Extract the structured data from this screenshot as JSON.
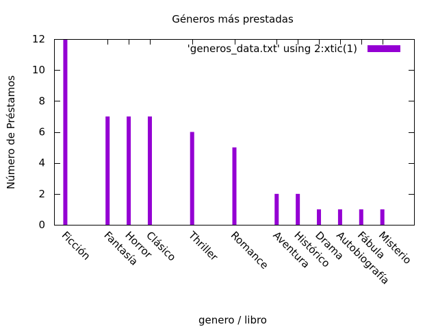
{
  "chart_data": {
    "type": "bar",
    "title": "Géneros más prestadas",
    "xlabel": "genero / libro",
    "ylabel": "Número de Préstamos",
    "ylim": [
      0,
      12
    ],
    "yticks": [
      0,
      2,
      4,
      6,
      8,
      10,
      12
    ],
    "grid": false,
    "legend_position": "top-right",
    "x_index_range": [
      -0.5,
      16.5
    ],
    "categories": [
      "Ficción",
      "Fantasía",
      "Horror",
      "Clásico",
      "Thriller",
      "Romance",
      "Aventura",
      "Histórico",
      "Drama",
      "Autobiografía",
      "Fábula",
      "Misterio"
    ],
    "x_positions": [
      0,
      2,
      3,
      4,
      6,
      8,
      10,
      11,
      12,
      13,
      14,
      15
    ],
    "series": [
      {
        "name": "'generos_data.txt' using 2:xtic(1)",
        "color": "#9400d3",
        "values": [
          12,
          7,
          7,
          7,
          6,
          5,
          2,
          2,
          1,
          1,
          1,
          1
        ]
      }
    ]
  }
}
